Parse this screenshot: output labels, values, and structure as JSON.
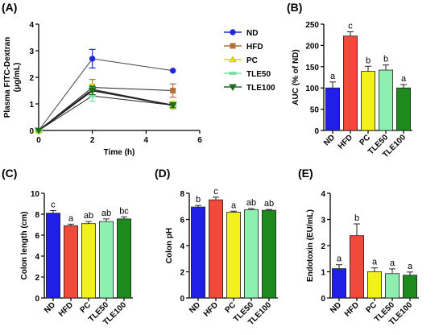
{
  "panels": [
    {
      "id": "A",
      "label": "(A)",
      "chart_data": {
        "type": "line",
        "xlabel": "Time (h)",
        "ylabel": "Plasma FITC-Dextran (μg/mL)",
        "xlim": [
          0,
          6
        ],
        "ylim": [
          0,
          4
        ],
        "xticks": [
          "0",
          "2",
          "4",
          "6"
        ],
        "yticks": [
          "0",
          "1",
          "2",
          "3",
          "4"
        ],
        "legend_position": "right",
        "series": [
          {
            "name": "ND",
            "color": "#1f2bd8",
            "marker": "circle",
            "x": [
              0,
              2,
              5
            ],
            "y": [
              0,
              2.7,
              2.25
            ],
            "err": [
              0,
              0.35,
              0
            ]
          },
          {
            "name": "HFD",
            "color": "#b5703a",
            "marker": "square",
            "x": [
              0,
              2,
              5
            ],
            "y": [
              0,
              1.62,
              1.5
            ],
            "err": [
              0,
              0.3,
              0.25
            ]
          },
          {
            "name": "PC",
            "color": "#e6e600",
            "marker": "triangle-up",
            "x": [
              0,
              2,
              5
            ],
            "y": [
              0,
              1.55,
              0.95
            ],
            "err": [
              0,
              0.2,
              0.15
            ]
          },
          {
            "name": "TLE50",
            "color": "#7de0a8",
            "marker": "line",
            "x": [
              0,
              2,
              5
            ],
            "y": [
              0,
              1.3,
              0.95
            ],
            "err": [
              0,
              0.2,
              0.1
            ]
          },
          {
            "name": "TLE100",
            "color": "#1e6b1e",
            "marker": "triangle-down",
            "x": [
              0,
              2,
              5
            ],
            "y": [
              0,
              1.5,
              0.95
            ],
            "err": [
              0,
              0.15,
              0.1
            ]
          }
        ]
      }
    },
    {
      "id": "B",
      "label": "(B)",
      "chart_data": {
        "type": "bar",
        "ylabel": "AUC (% of ND)",
        "ylim": [
          0,
          250
        ],
        "yticks": [
          "0",
          "50",
          "100",
          "150",
          "200",
          "250"
        ],
        "categories": [
          "ND",
          "HFD",
          "PC",
          "TLE50",
          "TLE100"
        ],
        "values": [
          100,
          222,
          139,
          142,
          100
        ],
        "errors": [
          14,
          10,
          12,
          12,
          8
        ],
        "letters": [
          "a",
          "c",
          "b",
          "b",
          "a"
        ],
        "colors": [
          "#1f1fe6",
          "#f04b3a",
          "#f2f21a",
          "#8ef0b0",
          "#1e8a1e"
        ]
      }
    },
    {
      "id": "C",
      "label": "(C)",
      "chart_data": {
        "type": "bar",
        "ylabel": "Colon length (cm)",
        "ylim": [
          0,
          10
        ],
        "yticks": [
          "0",
          "2",
          "4",
          "6",
          "8",
          "10"
        ],
        "categories": [
          "ND",
          "HFD",
          "PC",
          "TLE50",
          "TLE100"
        ],
        "values": [
          8.1,
          6.9,
          7.1,
          7.3,
          7.55
        ],
        "errors": [
          0.25,
          0.15,
          0.2,
          0.25,
          0.2
        ],
        "letters": [
          "c",
          "a",
          "ab",
          "ab",
          "bc"
        ],
        "colors": [
          "#1f1fe6",
          "#f04b3a",
          "#f2f21a",
          "#8ef0b0",
          "#1e8a1e"
        ]
      }
    },
    {
      "id": "D",
      "label": "(D)",
      "chart_data": {
        "type": "bar",
        "ylabel": "Colon pH",
        "ylim": [
          0,
          8
        ],
        "yticks": [
          "0",
          "2",
          "4",
          "6",
          "8"
        ],
        "categories": [
          "ND",
          "HFD",
          "PC",
          "TLE50",
          "TLE100"
        ],
        "values": [
          6.95,
          7.5,
          6.55,
          6.75,
          6.7
        ],
        "errors": [
          0.12,
          0.2,
          0.08,
          0.08,
          0.06
        ],
        "letters": [
          "b",
          "c",
          "a",
          "ab",
          "ab"
        ],
        "colors": [
          "#1f1fe6",
          "#f04b3a",
          "#f2f21a",
          "#8ef0b0",
          "#1e8a1e"
        ]
      }
    },
    {
      "id": "E",
      "label": "(E)",
      "chart_data": {
        "type": "bar",
        "ylabel": "Endotoxin (EU/mL)",
        "ylim": [
          0,
          4
        ],
        "yticks": [
          "0",
          "1",
          "2",
          "3",
          "4"
        ],
        "categories": [
          "ND",
          "HFD",
          "PC",
          "TLE50",
          "TLE100"
        ],
        "values": [
          1.12,
          2.38,
          1.0,
          0.93,
          0.87
        ],
        "errors": [
          0.15,
          0.45,
          0.15,
          0.18,
          0.12
        ],
        "letters": [
          "a",
          "b",
          "a",
          "a",
          "a"
        ],
        "colors": [
          "#1f1fe6",
          "#f04b3a",
          "#f2f21a",
          "#8ef0b0",
          "#1e8a1e"
        ]
      }
    }
  ]
}
